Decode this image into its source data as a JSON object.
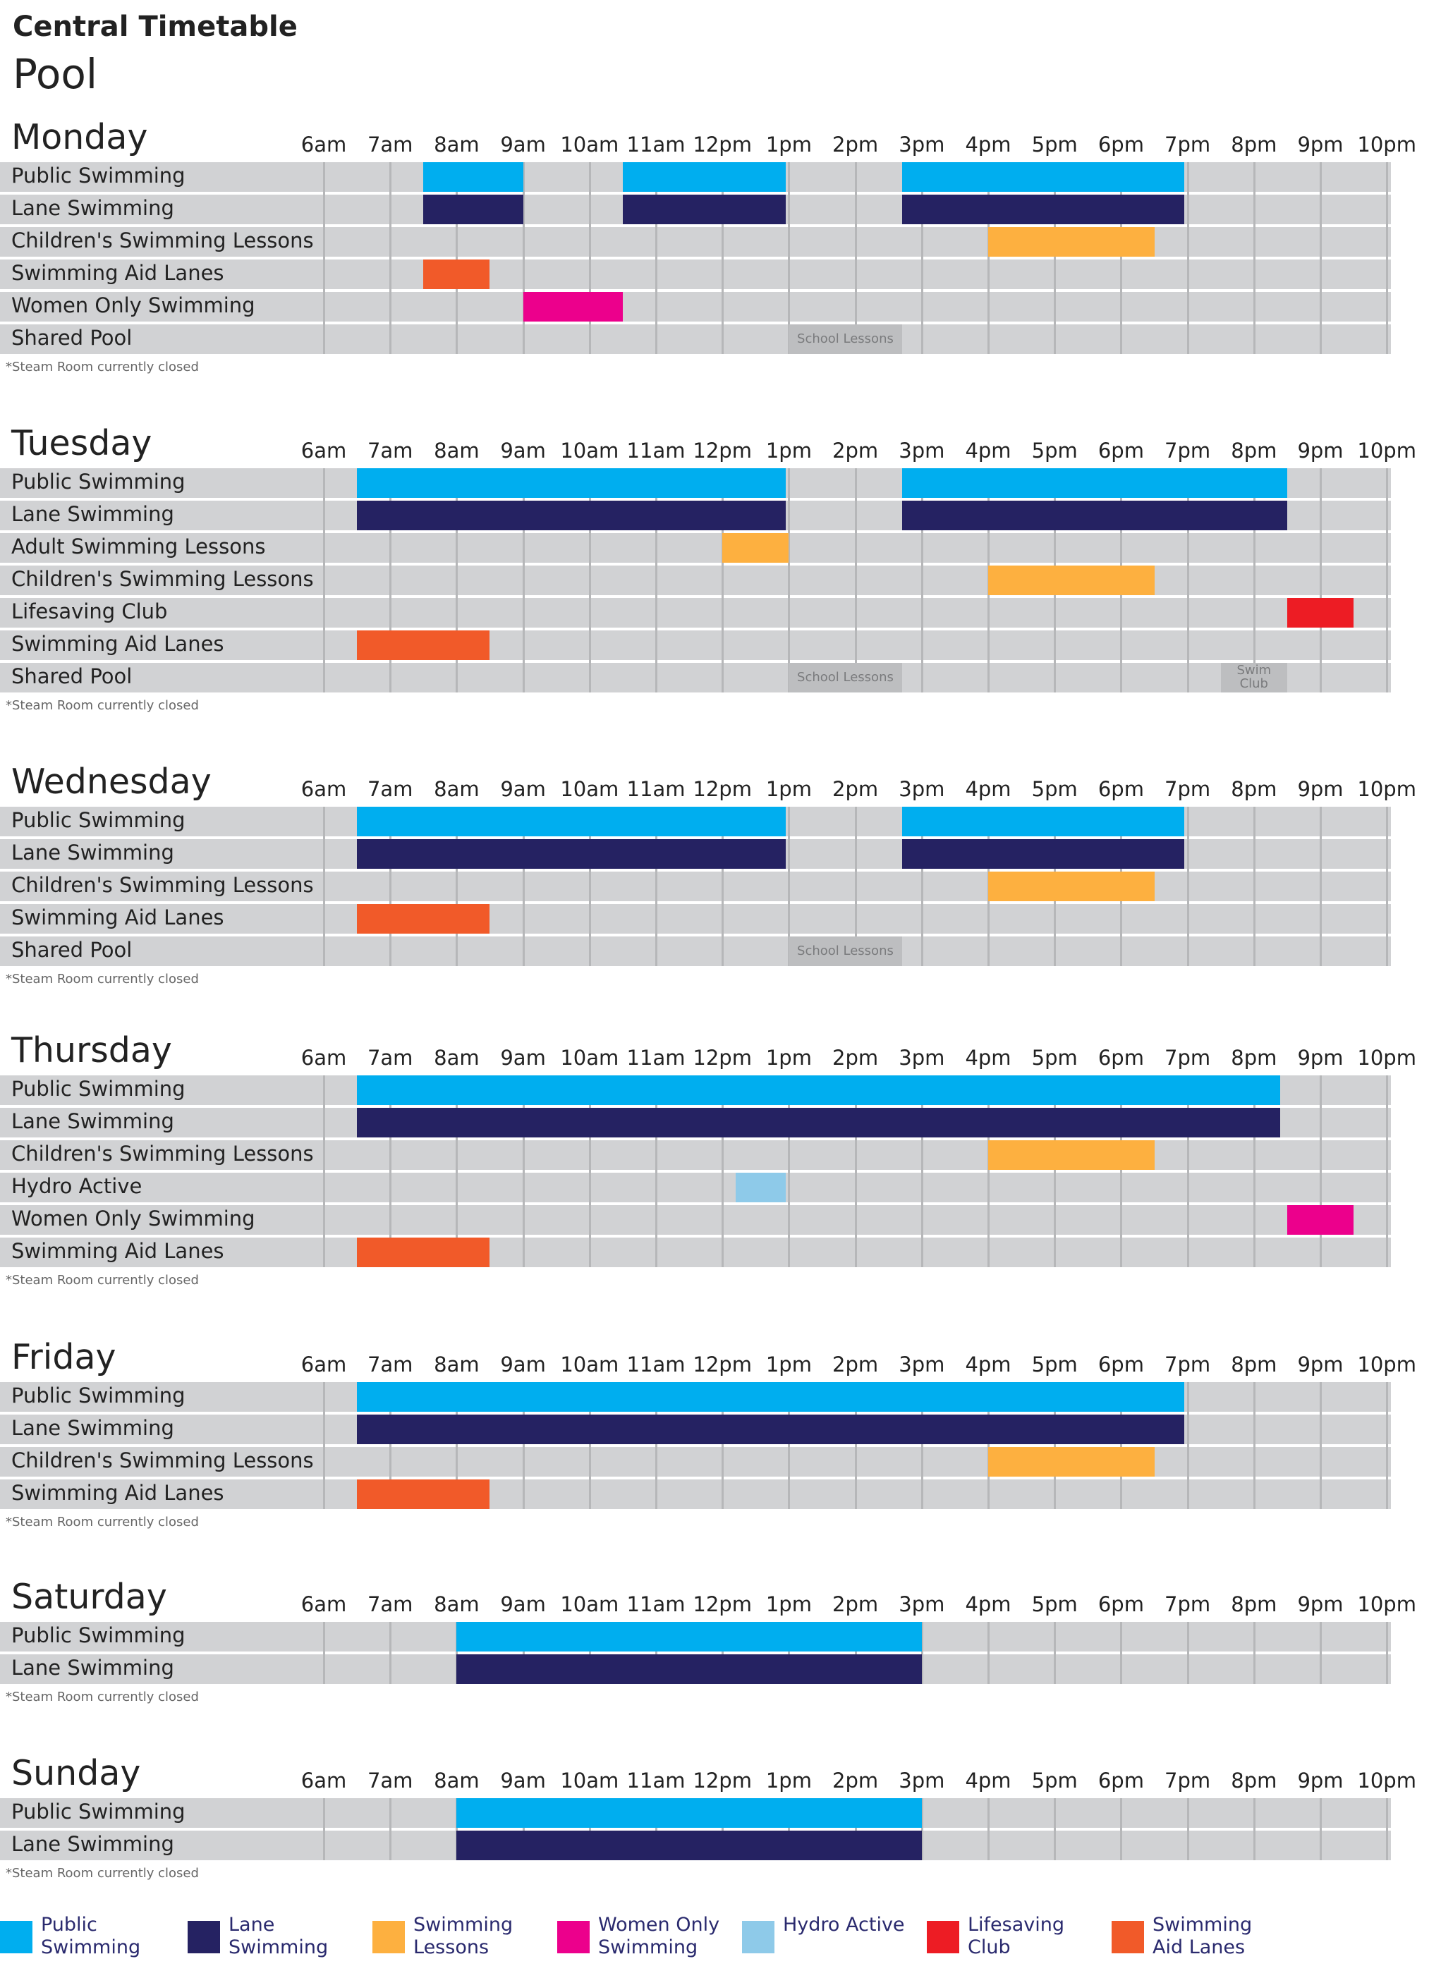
{
  "title": "Central Timetable",
  "subtitle": "Pool",
  "hours": [
    "6am",
    "7am",
    "8am",
    "9am",
    "10am",
    "11am",
    "12pm",
    "1pm",
    "2pm",
    "3pm",
    "4pm",
    "5pm",
    "6pm",
    "7pm",
    "8pm",
    "9pm",
    "10pm"
  ],
  "colors": {
    "public": "#00aeef",
    "lane": "#252262",
    "lessons": "#fdb040",
    "women": "#ec008c",
    "hydro": "#8ecae9",
    "lifesaving": "#ed1c24",
    "aid": "#f15a29"
  },
  "days": [
    {
      "name": "Monday",
      "note": "*Steam Room currently closed",
      "rows": [
        {
          "label": "Public Swimming",
          "blocks": [
            {
              "start": 7.5,
              "end": 9,
              "type": "public"
            },
            {
              "start": 10.5,
              "end": 12.95,
              "type": "public"
            },
            {
              "start": 14.7,
              "end": 18.95,
              "type": "public"
            }
          ]
        },
        {
          "label": "Lane Swimming",
          "blocks": [
            {
              "start": 7.5,
              "end": 9,
              "type": "lane"
            },
            {
              "start": 10.5,
              "end": 12.95,
              "type": "lane"
            },
            {
              "start": 14.7,
              "end": 18.95,
              "type": "lane"
            }
          ]
        },
        {
          "label": "Children's Swimming Lessons",
          "blocks": [
            {
              "start": 16,
              "end": 18.5,
              "type": "lessons"
            }
          ]
        },
        {
          "label": "Swimming Aid Lanes",
          "blocks": [
            {
              "start": 7.5,
              "end": 8.5,
              "type": "aid"
            }
          ]
        },
        {
          "label": "Women Only Swimming",
          "blocks": [
            {
              "start": 9,
              "end": 10.5,
              "type": "women"
            }
          ]
        },
        {
          "label": "Shared Pool",
          "blocks": [
            {
              "start": 13,
              "end": 14.7,
              "type": "shared",
              "text": "School Lessons"
            }
          ]
        }
      ]
    },
    {
      "name": "Tuesday",
      "note": "*Steam Room currently closed",
      "rows": [
        {
          "label": "Public Swimming",
          "blocks": [
            {
              "start": 6.5,
              "end": 12.95,
              "type": "public"
            },
            {
              "start": 14.7,
              "end": 20.5,
              "type": "public"
            }
          ]
        },
        {
          "label": "Lane Swimming",
          "blocks": [
            {
              "start": 6.5,
              "end": 12.95,
              "type": "lane"
            },
            {
              "start": 14.7,
              "end": 20.5,
              "type": "lane"
            }
          ]
        },
        {
          "label": "Adult Swimming Lessons",
          "blocks": [
            {
              "start": 12,
              "end": 13,
              "type": "lessons"
            }
          ]
        },
        {
          "label": "Children's Swimming Lessons",
          "blocks": [
            {
              "start": 16,
              "end": 18.5,
              "type": "lessons"
            }
          ]
        },
        {
          "label": "Lifesaving Club",
          "blocks": [
            {
              "start": 20.5,
              "end": 21.5,
              "type": "lifesaving"
            }
          ]
        },
        {
          "label": "Swimming Aid Lanes",
          "blocks": [
            {
              "start": 6.5,
              "end": 8.5,
              "type": "aid"
            }
          ]
        },
        {
          "label": "Shared Pool",
          "blocks": [
            {
              "start": 13,
              "end": 14.7,
              "type": "shared",
              "text": "School Lessons"
            },
            {
              "start": 19.5,
              "end": 20.5,
              "type": "shared",
              "text": "Swim Club"
            }
          ]
        }
      ]
    },
    {
      "name": "Wednesday",
      "note": "*Steam Room currently closed",
      "rows": [
        {
          "label": "Public Swimming",
          "blocks": [
            {
              "start": 6.5,
              "end": 12.95,
              "type": "public"
            },
            {
              "start": 14.7,
              "end": 18.95,
              "type": "public"
            }
          ]
        },
        {
          "label": "Lane Swimming",
          "blocks": [
            {
              "start": 6.5,
              "end": 12.95,
              "type": "lane"
            },
            {
              "start": 14.7,
              "end": 18.95,
              "type": "lane"
            }
          ]
        },
        {
          "label": "Children's Swimming Lessons",
          "blocks": [
            {
              "start": 16,
              "end": 18.5,
              "type": "lessons"
            }
          ]
        },
        {
          "label": "Swimming Aid Lanes",
          "blocks": [
            {
              "start": 6.5,
              "end": 8.5,
              "type": "aid"
            }
          ]
        },
        {
          "label": "Shared Pool",
          "blocks": [
            {
              "start": 13,
              "end": 14.7,
              "type": "shared",
              "text": "School Lessons"
            }
          ]
        }
      ]
    },
    {
      "name": "Thursday",
      "note": "*Steam Room currently closed",
      "rows": [
        {
          "label": "Public Swimming",
          "blocks": [
            {
              "start": 6.5,
              "end": 20.4,
              "type": "public"
            }
          ]
        },
        {
          "label": "Lane Swimming",
          "blocks": [
            {
              "start": 6.5,
              "end": 20.4,
              "type": "lane"
            }
          ]
        },
        {
          "label": "Children's Swimming Lessons",
          "blocks": [
            {
              "start": 16,
              "end": 18.5,
              "type": "lessons"
            }
          ]
        },
        {
          "label": "Hydro Active",
          "blocks": [
            {
              "start": 12.2,
              "end": 12.95,
              "type": "hydro"
            }
          ]
        },
        {
          "label": "Women Only Swimming",
          "blocks": [
            {
              "start": 20.5,
              "end": 21.5,
              "type": "women"
            }
          ]
        },
        {
          "label": "Swimming Aid Lanes",
          "blocks": [
            {
              "start": 6.5,
              "end": 8.5,
              "type": "aid"
            }
          ]
        }
      ]
    },
    {
      "name": "Friday",
      "note": "*Steam Room currently closed",
      "rows": [
        {
          "label": "Public Swimming",
          "blocks": [
            {
              "start": 6.5,
              "end": 18.95,
              "type": "public"
            }
          ]
        },
        {
          "label": "Lane Swimming",
          "blocks": [
            {
              "start": 6.5,
              "end": 18.95,
              "type": "lane"
            }
          ]
        },
        {
          "label": "Children's Swimming Lessons",
          "blocks": [
            {
              "start": 16,
              "end": 18.5,
              "type": "lessons"
            }
          ]
        },
        {
          "label": "Swimming Aid Lanes",
          "blocks": [
            {
              "start": 6.5,
              "end": 8.5,
              "type": "aid"
            }
          ]
        }
      ]
    },
    {
      "name": "Saturday",
      "note": "*Steam Room currently closed",
      "rows": [
        {
          "label": "Public Swimming",
          "blocks": [
            {
              "start": 8,
              "end": 15,
              "type": "public"
            }
          ]
        },
        {
          "label": "Lane Swimming",
          "blocks": [
            {
              "start": 8,
              "end": 15,
              "type": "lane"
            }
          ]
        }
      ]
    },
    {
      "name": "Sunday",
      "note": "*Steam Room currently closed",
      "rows": [
        {
          "label": "Public Swimming",
          "blocks": [
            {
              "start": 8,
              "end": 15,
              "type": "public"
            }
          ]
        },
        {
          "label": "Lane Swimming",
          "blocks": [
            {
              "start": 8,
              "end": 15,
              "type": "lane"
            }
          ]
        }
      ]
    }
  ],
  "legend": [
    {
      "key": "public",
      "text": "Public Swimming"
    },
    {
      "key": "lane",
      "text": "Lane Swimming"
    },
    {
      "key": "lessons",
      "text": "Swimming Lessons"
    },
    {
      "key": "women",
      "text": "Women Only Swimming"
    },
    {
      "key": "hydro",
      "text": "Hydro Active"
    },
    {
      "key": "lifesaving",
      "text": "Lifesaving Club"
    },
    {
      "key": "aid",
      "text": "Swimming Aid Lanes"
    }
  ]
}
